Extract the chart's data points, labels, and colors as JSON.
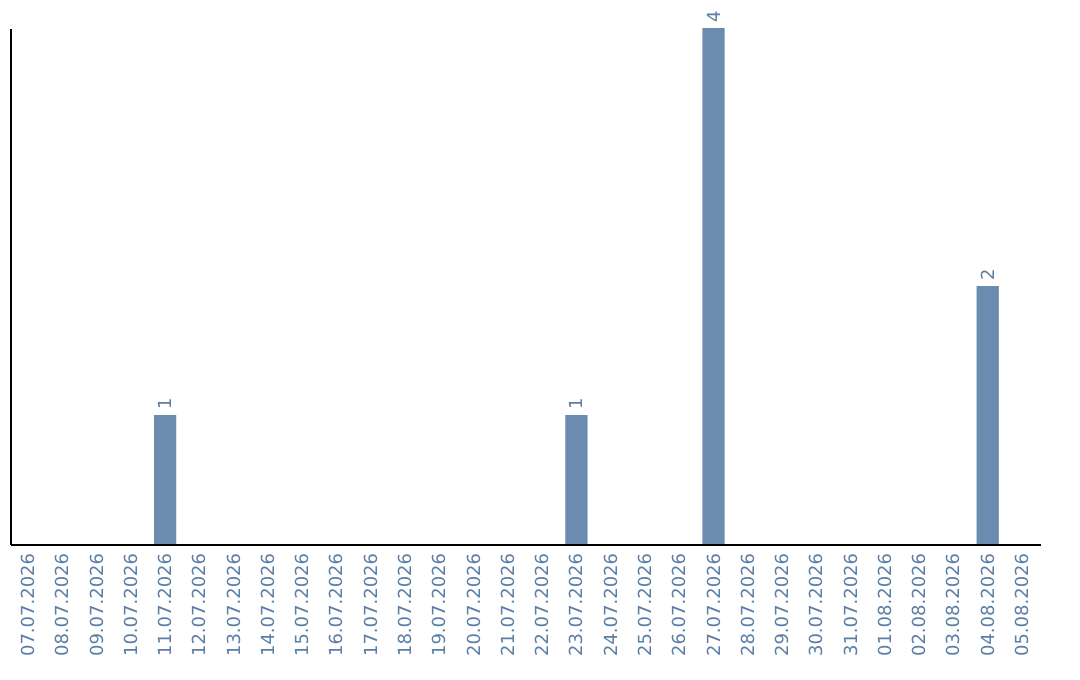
{
  "chart_data": {
    "type": "bar",
    "categories": [
      "07.07.2026",
      "08.07.2026",
      "09.07.2026",
      "10.07.2026",
      "11.07.2026",
      "12.07.2026",
      "13.07.2026",
      "14.07.2026",
      "15.07.2026",
      "16.07.2026",
      "17.07.2026",
      "18.07.2026",
      "19.07.2026",
      "20.07.2026",
      "21.07.2026",
      "22.07.2026",
      "23.07.2026",
      "24.07.2026",
      "25.07.2026",
      "26.07.2026",
      "27.07.2026",
      "28.07.2026",
      "29.07.2026",
      "30.07.2026",
      "31.07.2026",
      "01.08.2026",
      "02.08.2026",
      "03.08.2026",
      "04.08.2026",
      "05.08.2026"
    ],
    "values": [
      0,
      0,
      0,
      0,
      1,
      0,
      0,
      0,
      0,
      0,
      0,
      0,
      0,
      0,
      0,
      0,
      1,
      0,
      0,
      0,
      4,
      0,
      0,
      0,
      0,
      0,
      0,
      0,
      2,
      0
    ],
    "value_labels": [
      null,
      null,
      null,
      null,
      "1",
      null,
      null,
      null,
      null,
      null,
      null,
      null,
      null,
      null,
      null,
      null,
      "1",
      null,
      null,
      null,
      "4",
      null,
      null,
      null,
      null,
      null,
      null,
      null,
      "2",
      null
    ],
    "color": "#6b8cae",
    "tick_labels": "x"
  }
}
